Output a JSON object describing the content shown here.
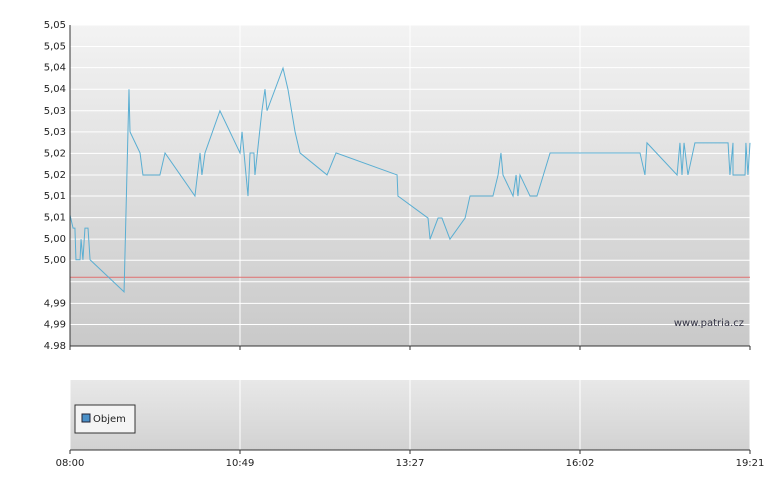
{
  "chart_data": [
    {
      "type": "line",
      "xlim": [
        0,
        4
      ],
      "ylim": [
        4.98,
        5.05
      ],
      "yticks": [
        {
          "value": 5.05,
          "label": "5,05"
        },
        {
          "value": 5.0453,
          "label": "5,05"
        },
        {
          "value": 5.0407,
          "label": "5,04"
        },
        {
          "value": 5.036,
          "label": "5,04"
        },
        {
          "value": 5.0313,
          "label": "5,03"
        },
        {
          "value": 5.0267,
          "label": "5,03"
        },
        {
          "value": 5.022,
          "label": "5,02"
        },
        {
          "value": 5.0173,
          "label": "5,02"
        },
        {
          "value": 5.0127,
          "label": "5,01"
        },
        {
          "value": 5.008,
          "label": "5,01"
        },
        {
          "value": 5.0033,
          "label": "5,00"
        },
        {
          "value": 4.9987,
          "label": "5,00"
        },
        {
          "value": 4.994,
          "label": null
        },
        {
          "value": 4.9893,
          "label": "4,99"
        },
        {
          "value": 4.9847,
          "label": "4,99"
        },
        {
          "value": 4.98,
          "label": "4.98"
        }
      ],
      "grid": true,
      "reference_line": {
        "value": 4.995,
        "color": "#e07070"
      },
      "watermark": "www.patria.cz",
      "series": [
        {
          "color": "#5aaed2",
          "x": [
            0,
            0.018,
            0.029,
            0.035,
            0.059,
            0.065,
            0.076,
            0.088,
            0.106,
            0.118,
            0.318,
            0.347,
            0.353,
            0.412,
            0.429,
            0.529,
            0.559,
            0.735,
            0.765,
            0.776,
            0.794,
            0.882,
            1.0,
            1.012,
            1.047,
            1.059,
            1.082,
            1.088,
            1.129,
            1.147,
            1.159,
            1.253,
            1.282,
            1.324,
            1.353,
            1.512,
            1.565,
            1.924,
            1.929,
            2.106,
            2.118,
            2.165,
            2.188,
            2.235,
            2.324,
            2.353,
            2.488,
            2.518,
            2.535,
            2.547,
            2.606,
            2.624,
            2.635,
            2.647,
            2.706,
            2.747,
            2.824,
            3.353,
            3.382,
            3.394,
            3.571,
            3.588,
            3.6,
            3.612,
            3.635,
            3.676,
            3.871,
            3.882,
            3.9,
            3.9,
            3.971,
            3.976,
            3.988,
            4
          ],
          "values": [
            5.0086,
            5.0057,
            5.0057,
            4.9988,
            4.9988,
            5.0033,
            4.9988,
            5.0057,
            5.0057,
            4.9988,
            4.9918,
            5.036,
            5.0267,
            5.0221,
            5.0173,
            5.0173,
            5.0221,
            5.0127,
            5.0221,
            5.0173,
            5.0221,
            5.0313,
            5.0221,
            5.0267,
            5.0127,
            5.0221,
            5.0221,
            5.0173,
            5.0313,
            5.036,
            5.0313,
            5.0406,
            5.036,
            5.0267,
            5.0221,
            5.0173,
            5.0221,
            5.0173,
            5.0127,
            5.0079,
            5.0033,
            5.0079,
            5.0079,
            5.0033,
            5.0079,
            5.0127,
            5.0127,
            5.0173,
            5.0221,
            5.0173,
            5.0127,
            5.0173,
            5.0127,
            5.0173,
            5.0127,
            5.0127,
            5.0221,
            5.0221,
            5.0173,
            5.0243,
            5.0173,
            5.0243,
            5.0173,
            5.0243,
            5.0173,
            5.0243,
            5.0243,
            5.0173,
            5.0243,
            5.0173,
            5.0173,
            5.0243,
            5.0173,
            5.0243
          ]
        }
      ]
    },
    {
      "type": "bar",
      "xlim": [
        0,
        4
      ],
      "xticks": [
        {
          "value": 0,
          "label": "08:00"
        },
        {
          "value": 1,
          "label": "10:49"
        },
        {
          "value": 2,
          "label": "13:27"
        },
        {
          "value": 3,
          "label": "16:02"
        },
        {
          "value": 4,
          "label": "19:21"
        }
      ],
      "grid": true,
      "series": [
        {
          "name": "Objem",
          "color": "#4a90c8",
          "values": []
        }
      ]
    }
  ]
}
